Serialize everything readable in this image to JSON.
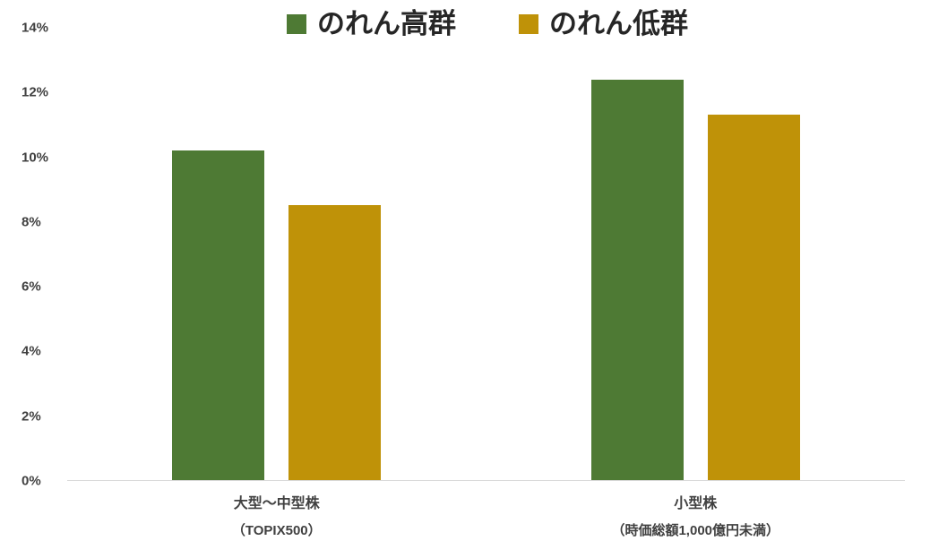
{
  "chart_data": {
    "type": "bar",
    "title": "",
    "xlabel": "",
    "ylabel": "",
    "ylim": [
      0,
      14
    ],
    "grid": false,
    "legend_position": "top",
    "ytick_values": [
      0,
      2,
      4,
      6,
      8,
      10,
      12,
      14
    ],
    "ytick_labels": [
      "0%",
      "2%",
      "4%",
      "6%",
      "8%",
      "10%",
      "12%",
      "14%"
    ],
    "categories": [
      {
        "label": "大型～中型株",
        "sublabel": "（TOPIX500）"
      },
      {
        "label": "小型株",
        "sublabel": "（時価総額1,000億円未満）"
      }
    ],
    "series": [
      {
        "name": "のれん高群",
        "color": "#4E7A34",
        "values": [
          10.2,
          12.4
        ]
      },
      {
        "name": "のれん低群",
        "color": "#BF9208",
        "values": [
          8.5,
          11.3
        ]
      }
    ]
  }
}
